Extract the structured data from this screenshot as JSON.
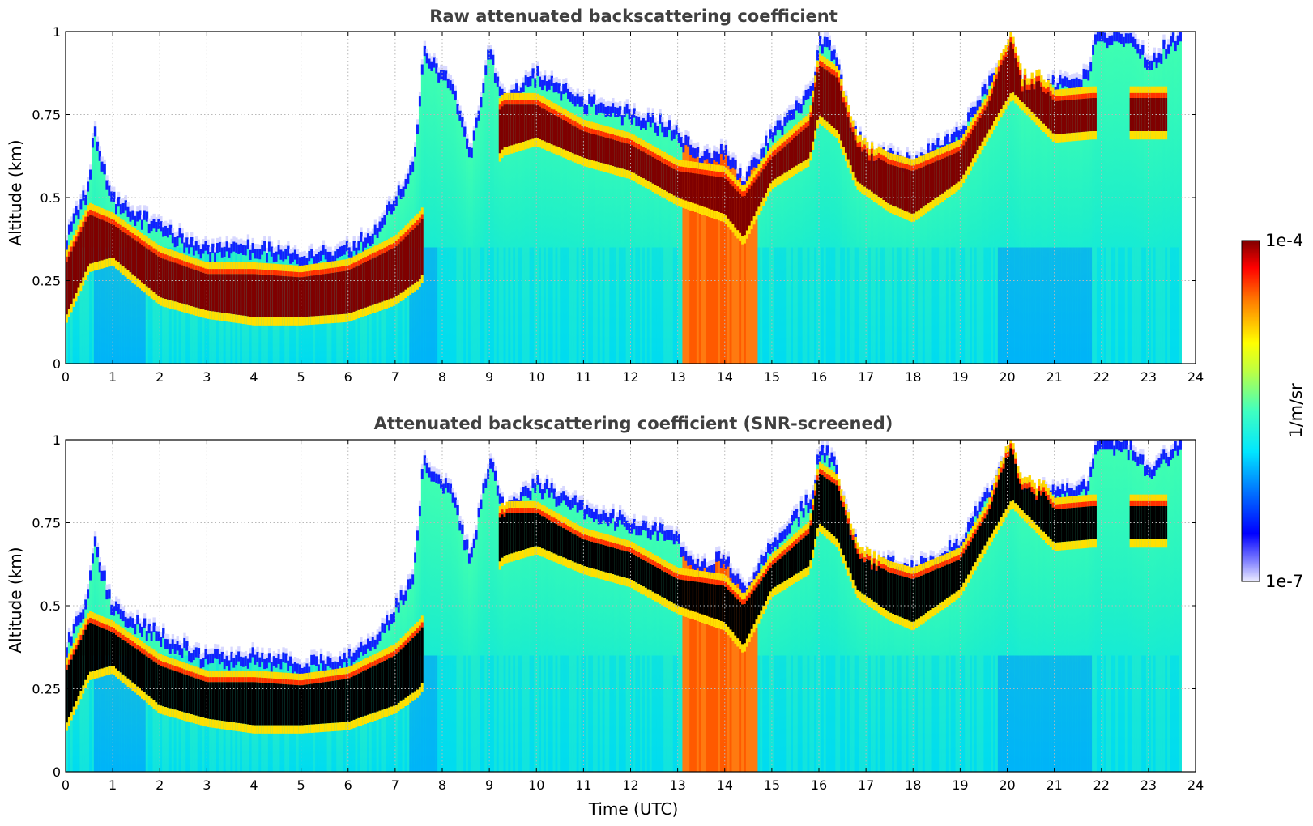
{
  "chart_data": {
    "type": "heatmap",
    "shared": {
      "xlabel": "Time (UTC)",
      "ylabel": "Altitude (km)",
      "xlim": [
        0,
        24
      ],
      "ylim": [
        0,
        1
      ],
      "x_ticks": [
        "0",
        "1",
        "2",
        "3",
        "4",
        "5",
        "6",
        "7",
        "8",
        "9",
        "10",
        "11",
        "12",
        "13",
        "14",
        "15",
        "16",
        "17",
        "18",
        "19",
        "20",
        "21",
        "22",
        "23",
        "24"
      ],
      "y_ticks": [
        "0",
        "0.25",
        "0.5",
        "0.75",
        "1"
      ],
      "grid": "dotted",
      "colormap": "jet (white at low end)",
      "colorbar": {
        "label": "1/m/sr",
        "min_label": "1e-7",
        "max_label": "1e-4",
        "scale": "log",
        "min": 1e-07,
        "max": 0.0001
      },
      "data_end_hour": 23.7
    },
    "panels": [
      {
        "title": "Raw attenuated backscattering coefficient",
        "saturated_color": "#7f0000"
      },
      {
        "title": "Attenuated backscattering coefficient (SNR-screened)",
        "saturated_color": "#000000"
      }
    ],
    "layer_top_km": {
      "hours": [
        0,
        0.5,
        0.6,
        1.0,
        2.0,
        3.0,
        4.0,
        5.0,
        6.0,
        6.5,
        7.0,
        7.4,
        7.6,
        8.2,
        8.6,
        9.0,
        9.3,
        10.0,
        11.0,
        12.0,
        12.9,
        13.5,
        14.0,
        14.4,
        15.0,
        15.5,
        15.9,
        16.0,
        16.3,
        16.7,
        17.0,
        18.0,
        19.0,
        19.8,
        20.1,
        20.3,
        21.0,
        21.7,
        21.9,
        22.5,
        23.0,
        23.7
      ],
      "km": [
        0.38,
        0.55,
        0.72,
        0.5,
        0.42,
        0.35,
        0.36,
        0.33,
        0.35,
        0.4,
        0.5,
        0.6,
        0.95,
        0.85,
        0.65,
        0.95,
        0.8,
        0.88,
        0.8,
        0.76,
        0.72,
        0.62,
        0.66,
        0.55,
        0.7,
        0.77,
        0.85,
        0.98,
        0.96,
        0.72,
        0.65,
        0.62,
        0.7,
        0.9,
        1.0,
        0.86,
        0.85,
        0.88,
        1.0,
        1.0,
        0.92,
        1.0
      ]
    },
    "saturated_layer_km": {
      "hours": [
        0,
        0.5,
        1.0,
        2.0,
        3.0,
        4.0,
        5.0,
        6.0,
        7.0,
        7.5,
        9.3,
        10.0,
        11.0,
        12.0,
        13.0,
        14.0,
        14.4,
        15.0,
        15.8,
        16.0,
        16.4,
        16.8,
        17.5,
        18.0,
        19.0,
        19.6,
        20.1,
        21.0,
        21.8
      ],
      "bottom": [
        0.14,
        0.3,
        0.32,
        0.2,
        0.16,
        0.14,
        0.14,
        0.15,
        0.2,
        0.25,
        0.65,
        0.68,
        0.62,
        0.58,
        0.5,
        0.45,
        0.38,
        0.55,
        0.62,
        0.75,
        0.7,
        0.55,
        0.48,
        0.45,
        0.55,
        0.7,
        0.82,
        0.69,
        0.7
      ],
      "top": [
        0.3,
        0.45,
        0.42,
        0.32,
        0.27,
        0.27,
        0.26,
        0.28,
        0.35,
        0.42,
        0.78,
        0.78,
        0.7,
        0.66,
        0.58,
        0.56,
        0.5,
        0.62,
        0.72,
        0.9,
        0.86,
        0.66,
        0.6,
        0.58,
        0.64,
        0.78,
        1.0,
        0.79,
        0.8
      ]
    },
    "high_aerosol_band_hours": [
      13.1,
      14.7
    ]
  }
}
